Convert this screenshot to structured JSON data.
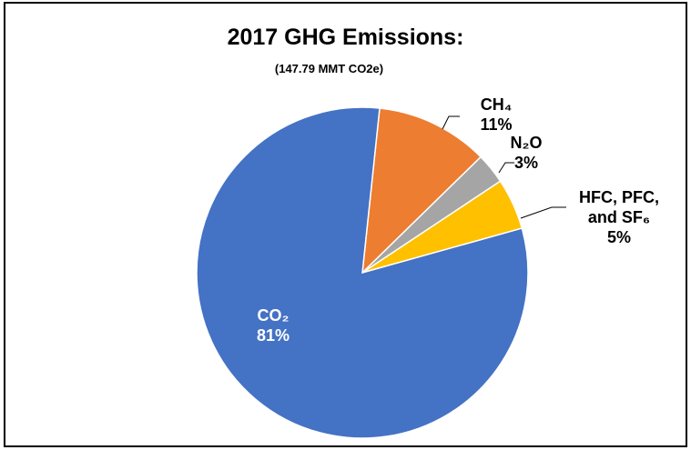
{
  "chart_data": {
    "type": "pie",
    "title": "2017 GHG Emissions:",
    "subtitle": "(147.79 MMT CO2e)",
    "categories": [
      "CH₄",
      "N₂O",
      "HFC, PFC, and SF₆",
      "CO₂"
    ],
    "values": [
      11,
      3,
      5,
      81
    ],
    "value_labels": [
      "11%",
      "3%",
      "5%",
      "81%"
    ],
    "colors": [
      "#ed7d31",
      "#a5a5a5",
      "#ffc000",
      "#4472c4"
    ]
  }
}
